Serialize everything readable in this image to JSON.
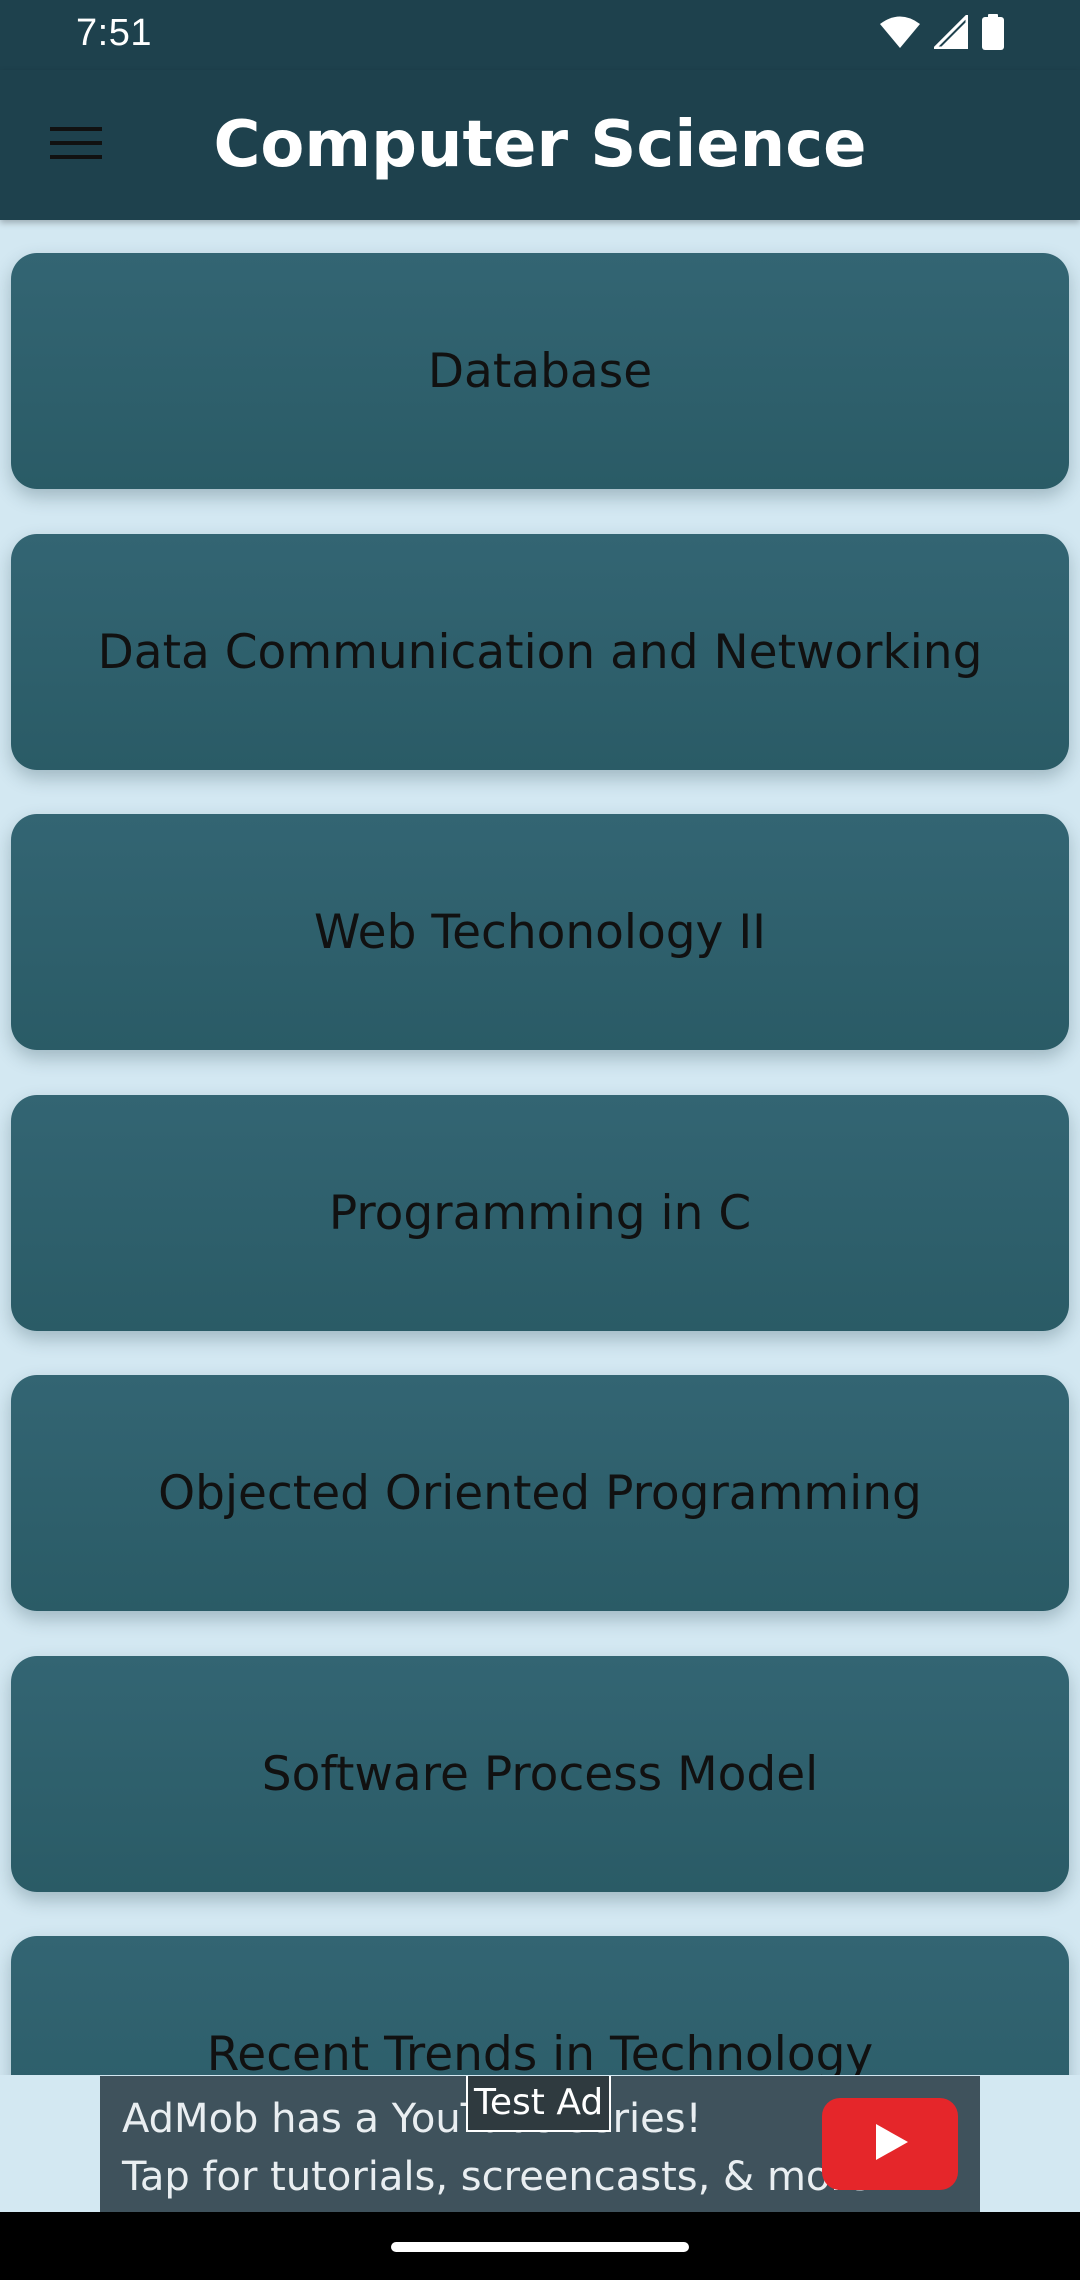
{
  "status_bar": {
    "time": "7:51",
    "icons": [
      "wifi-icon",
      "signal-icon",
      "battery-icon"
    ]
  },
  "app_bar": {
    "title": "Computer Science",
    "menu_icon": "hamburger-menu-icon"
  },
  "subjects": [
    {
      "label": "Database"
    },
    {
      "label": "Data Communication and Networking"
    },
    {
      "label": "Web Techonology II"
    },
    {
      "label": "Programming in C"
    },
    {
      "label": "Objected Oriented Programming"
    },
    {
      "label": "Software Process Model"
    },
    {
      "label": "Recent Trends in Technology"
    }
  ],
  "ad": {
    "badge": "Test Ad",
    "line1": "AdMob has a YouTube series!",
    "line2": "Tap for tutorials, screencasts, & more.",
    "icon": "youtube-play-icon"
  },
  "colors": {
    "app_bar": "#1e414d",
    "background": "#d3e8f2",
    "card": "#306270",
    "ad_play": "#e5262a"
  }
}
